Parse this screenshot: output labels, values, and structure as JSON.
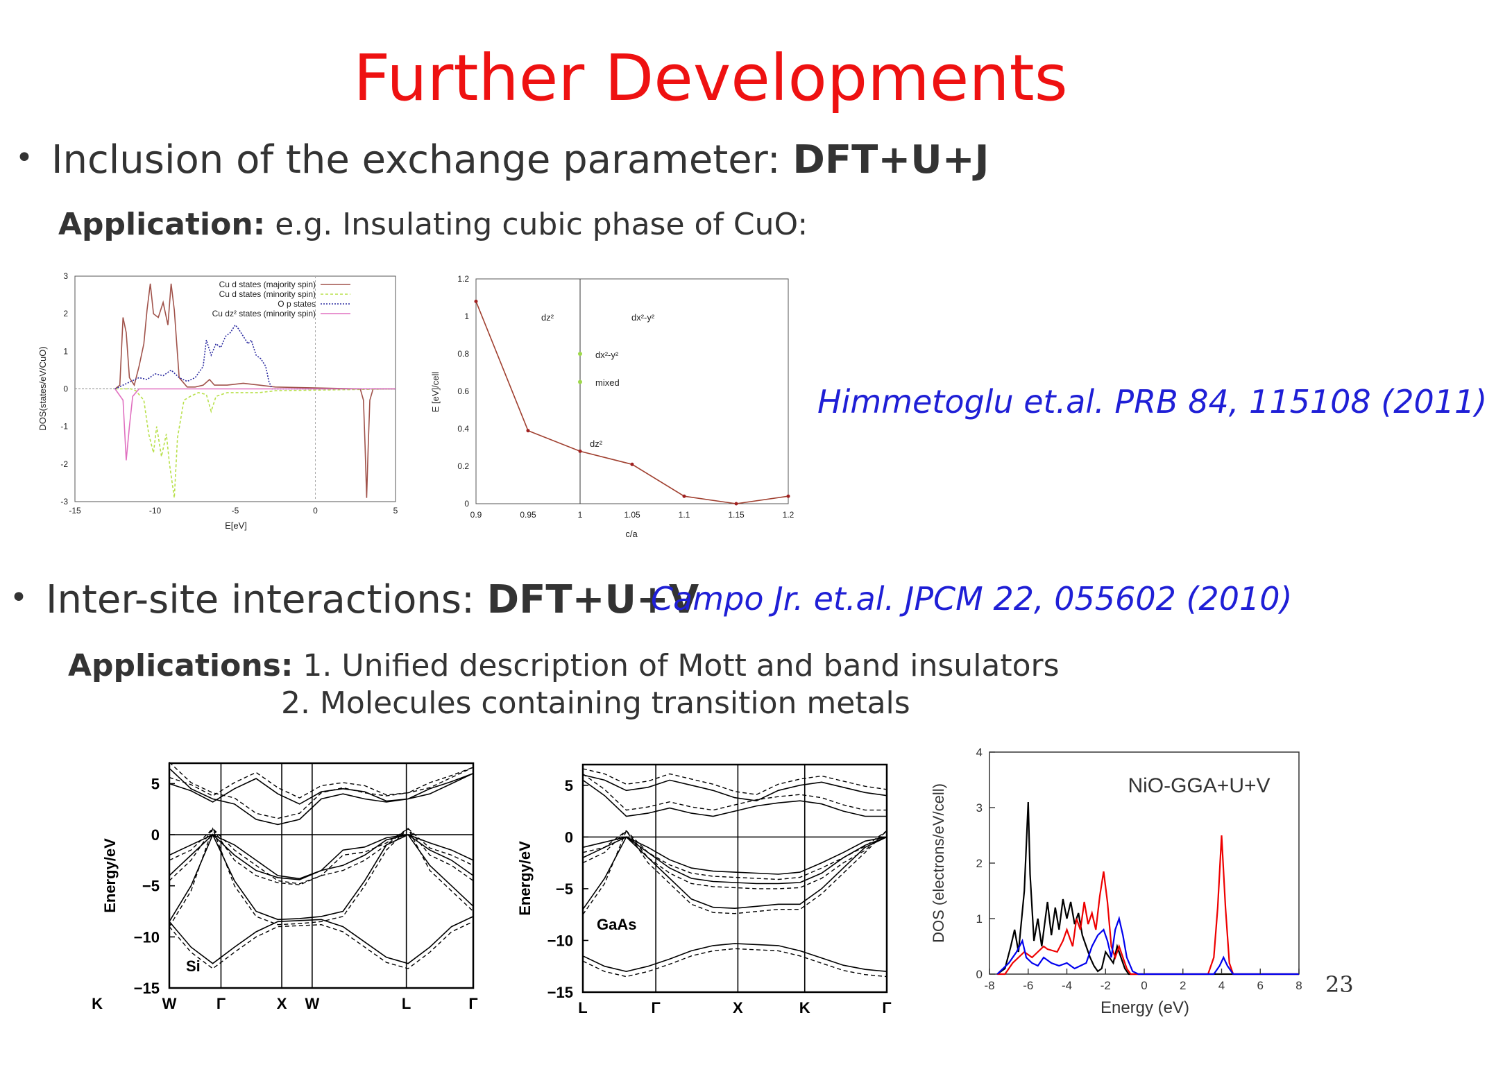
{
  "slide": {
    "title": "Further Developments",
    "page_number": "23",
    "bullet1": {
      "text": "Inclusion of the exchange parameter: ",
      "bold": "DFT+U+J"
    },
    "app1": {
      "bold": "Application:",
      "text": " e.g. Insulating cubic phase of CuO:"
    },
    "ref1": "Himmetoglu et.al. PRB 84, 115108 (2011)",
    "bullet2": {
      "text": "Inter-site interactions: ",
      "bold": "DFT+U+V"
    },
    "ref2": "Campo Jr. et.al. JPCM 22, 055602 (2010)",
    "app2": {
      "bold": "Applications:",
      "line1": " 1. Unified description of Mott and band insulators",
      "line2": "2. Molecules containing transition metals"
    }
  },
  "chart_data": [
    {
      "type": "line",
      "xlabel": "E[eV]",
      "ylabel": "DOS(states/eV/CuO)",
      "xlim": [
        -15,
        5
      ],
      "ylim": [
        -3,
        3
      ],
      "xticks": [
        "-15",
        "-10",
        "-5",
        "0",
        "5"
      ],
      "yticks": [
        "-3",
        "-2",
        "-1",
        "0",
        "1",
        "2",
        "3"
      ],
      "legend": [
        "Cu d states (majority spin)",
        "Cu d states (minority spin)",
        "O p states",
        "Cu dz² states (minority spin)"
      ],
      "colors": [
        "#a0524a",
        "#b8e04a",
        "#2a2aa0",
        "#e070c0"
      ],
      "series": [
        {
          "name": "Cu d states (majority spin)",
          "x": [
            -12.5,
            -12.2,
            -12.0,
            -11.8,
            -11.6,
            -11.3,
            -11.0,
            -10.7,
            -10.5,
            -10.3,
            -10.1,
            -9.8,
            -9.5,
            -9.2,
            -9.0,
            -8.8,
            -8.5,
            -8.0,
            -7.5,
            -7.0,
            -6.6,
            -6.3,
            -5.5,
            -4.5,
            -3.5,
            -2.5,
            2.8,
            3.0,
            3.1,
            3.2,
            3.3,
            3.4,
            3.6,
            5.0
          ],
          "y": [
            0,
            0.1,
            1.9,
            1.5,
            0.3,
            0.1,
            0.6,
            1.2,
            2.1,
            2.8,
            2.0,
            1.9,
            2.3,
            1.7,
            2.8,
            2.1,
            0.3,
            0.05,
            0.05,
            0.1,
            0.25,
            0.1,
            0.1,
            0.15,
            0.1,
            0.05,
            0,
            -0.3,
            -1.5,
            -2.9,
            -1.5,
            -0.3,
            0,
            0
          ]
        },
        {
          "name": "Cu d states (minority spin)",
          "x": [
            -12.5,
            -11.5,
            -11.2,
            -10.7,
            -10.4,
            -10.1,
            -9.9,
            -9.6,
            -9.3,
            -9.1,
            -8.8,
            -8.6,
            -8.2,
            -7.8,
            -7.3,
            -6.8,
            -6.5,
            -6.2,
            -5.5,
            -4.5,
            -3.5,
            -2.5,
            5.0
          ],
          "y": [
            0,
            0,
            -0.05,
            -0.3,
            -1.2,
            -1.7,
            -1.0,
            -1.8,
            -1.2,
            -2.0,
            -2.9,
            -1.3,
            -0.3,
            -0.2,
            -0.1,
            -0.15,
            -0.6,
            -0.2,
            -0.1,
            -0.1,
            -0.1,
            -0.05,
            0
          ]
        },
        {
          "name": "O p states",
          "x": [
            -12.5,
            -12.0,
            -11.5,
            -11.0,
            -10.5,
            -10.0,
            -9.5,
            -9.0,
            -8.5,
            -8.0,
            -7.5,
            -7.0,
            -6.8,
            -6.5,
            -6.2,
            -5.9,
            -5.6,
            -5.3,
            -5.0,
            -4.8,
            -4.5,
            -4.2,
            -4.0,
            -3.7,
            -3.4,
            -3.1,
            -2.9,
            -2.7,
            5.0
          ],
          "y": [
            0,
            0.1,
            0.2,
            0.3,
            0.25,
            0.4,
            0.35,
            0.5,
            0.3,
            0.2,
            0.3,
            0.6,
            1.3,
            0.9,
            1.2,
            1.1,
            1.4,
            1.5,
            1.7,
            1.6,
            1.4,
            1.2,
            1.3,
            0.9,
            0.8,
            0.6,
            0.2,
            0,
            0
          ]
        },
        {
          "name": "Cu dz² states (minority spin)",
          "x": [
            -12.5,
            -12.0,
            -11.8,
            -11.6,
            -11.4,
            -11.0,
            5.0
          ],
          "y": [
            0,
            -0.3,
            -1.9,
            -1.0,
            -0.2,
            0,
            0
          ]
        }
      ]
    },
    {
      "type": "line",
      "xlabel": "c/a",
      "ylabel": "E [eV]/cell",
      "xlim": [
        0.9,
        1.2
      ],
      "ylim": [
        0,
        1.2
      ],
      "xticks": [
        "0.9",
        "0.95",
        "1",
        "1.05",
        "1.1",
        "1.15",
        "1.2"
      ],
      "yticks": [
        "0",
        "0.2",
        "0.4",
        "0.6",
        "0.8",
        "1",
        "1.2"
      ],
      "region_labels": [
        "dz²",
        "dx²-y²"
      ],
      "annotations": [
        "dx²-y²",
        "mixed",
        "dz²"
      ],
      "series": [
        {
          "x": [
            0.9,
            0.95,
            1.0,
            1.05,
            1.1,
            1.15,
            1.2
          ],
          "y": [
            1.08,
            0.39,
            0.28,
            0.21,
            0.04,
            0.0,
            0.04
          ]
        }
      ],
      "points_at_1": [
        {
          "label": "dx²-y²",
          "y": 0.8
        },
        {
          "label": "mixed",
          "y": 0.65
        }
      ]
    },
    {
      "type": "line",
      "ylabel": "Energy/eV",
      "ylim": [
        -15,
        7
      ],
      "yticks": [
        "5",
        "0",
        "−5",
        "−10",
        "−15"
      ],
      "xticks": [
        "W",
        "Γ",
        "X",
        "W",
        "L",
        "Γ",
        "K"
      ],
      "label": "Si"
    },
    {
      "type": "line",
      "ylabel": "Energy/eV",
      "ylim": [
        -15,
        7
      ],
      "yticks": [
        "5",
        "0",
        "−5",
        "−10",
        "−15"
      ],
      "xticks": [
        "L",
        "Γ",
        "X",
        "K",
        "Γ"
      ],
      "label": "GaAs"
    },
    {
      "type": "line",
      "title": "NiO-GGA+U+V",
      "xlabel": "Energy (eV)",
      "ylabel": "DOS (electrons/eV/cell)",
      "xlim": [
        -8,
        8
      ],
      "ylim": [
        0,
        4
      ],
      "xticks": [
        "-8",
        "-6",
        "-4",
        "-2",
        "0",
        "2",
        "4",
        "6",
        "8"
      ],
      "yticks": [
        "0",
        "1",
        "2",
        "3",
        "4"
      ],
      "colors": [
        "#000000",
        "#ee0000",
        "#0000ee"
      ],
      "series": [
        {
          "x": [
            -7.6,
            -7.2,
            -6.9,
            -6.7,
            -6.5,
            -6.2,
            -6.0,
            -5.9,
            -5.7,
            -5.5,
            -5.3,
            -5.0,
            -4.8,
            -4.6,
            -4.4,
            -4.2,
            -4.0,
            -3.8,
            -3.6,
            -3.4,
            -3.2,
            -3.0,
            -2.8,
            -2.6,
            -2.4,
            -2.2,
            -2.0,
            -1.8,
            -1.6,
            -1.4,
            -1.2,
            -1.0,
            -0.8,
            -0.5,
            8.0
          ],
          "y": [
            0,
            0.1,
            0.5,
            0.8,
            0.4,
            1.5,
            3.1,
            1.8,
            0.6,
            1.0,
            0.5,
            1.3,
            0.7,
            1.2,
            0.8,
            1.35,
            1.0,
            1.3,
            0.9,
            1.1,
            0.7,
            0.5,
            0.3,
            0.15,
            0.05,
            0.1,
            0.4,
            0.3,
            0.2,
            0.5,
            0.3,
            0.1,
            0.0,
            0,
            0
          ]
        },
        {
          "x": [
            -7.6,
            -7.2,
            -7.0,
            -6.8,
            -6.5,
            -6.2,
            -6.0,
            -5.8,
            -5.5,
            -5.2,
            -5.0,
            -4.5,
            -4.2,
            -4.0,
            -3.7,
            -3.5,
            -3.3,
            -3.1,
            -2.9,
            -2.7,
            -2.5,
            -2.3,
            -2.1,
            -1.9,
            -1.7,
            -1.5,
            -1.3,
            -1.1,
            -0.9,
            -0.7,
            -0.5,
            3.3,
            3.6,
            3.8,
            4.0,
            4.2,
            4.4,
            4.6,
            8.0
          ],
          "y": [
            0,
            0,
            0.1,
            0.2,
            0.3,
            0.4,
            0.35,
            0.3,
            0.4,
            0.5,
            0.45,
            0.4,
            0.6,
            0.8,
            0.5,
            1.0,
            0.8,
            1.3,
            0.9,
            1.1,
            0.8,
            1.4,
            1.85,
            1.3,
            0.5,
            0.3,
            0.5,
            0.3,
            0.1,
            0,
            0,
            0,
            0.3,
            1.2,
            2.5,
            1.2,
            0.2,
            0,
            0
          ]
        },
        {
          "x": [
            -7.6,
            -7.0,
            -6.6,
            -6.3,
            -6.1,
            -5.8,
            -5.5,
            -5.2,
            -4.8,
            -4.4,
            -4.0,
            -3.6,
            -3.3,
            -3.0,
            -2.7,
            -2.4,
            -2.1,
            -1.9,
            -1.7,
            -1.5,
            -1.3,
            -1.1,
            -0.9,
            -0.6,
            -0.3,
            3.6,
            3.9,
            4.1,
            4.3,
            4.6,
            8.0
          ],
          "y": [
            0,
            0.2,
            0.4,
            0.6,
            0.3,
            0.2,
            0.15,
            0.3,
            0.2,
            0.15,
            0.2,
            0.1,
            0.15,
            0.2,
            0.5,
            0.7,
            0.8,
            0.6,
            0.3,
            0.8,
            1.0,
            0.7,
            0.3,
            0.05,
            0,
            0,
            0.15,
            0.3,
            0.15,
            0,
            0
          ]
        }
      ]
    }
  ]
}
